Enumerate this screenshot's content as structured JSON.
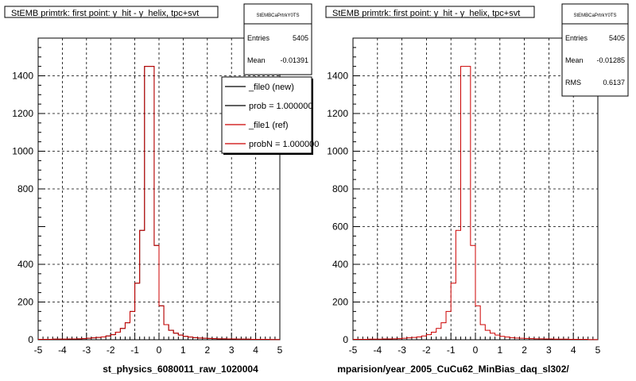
{
  "footer_text": "",
  "colors": {
    "new_series": "#000000",
    "ref_series": "#cc0000",
    "grid": "#000000",
    "frame": "#000000",
    "background": "#ffffff"
  },
  "chart_data": [
    {
      "type": "line",
      "title": "StEMB primtrk: first point: y_hit - y_helix, tpc+svt",
      "xlabel": "st_physics_6080011_raw_1020004",
      "ylabel": "",
      "xlim": [
        -5,
        5
      ],
      "ylim": [
        0,
        1600
      ],
      "grid": true,
      "xticks": [
        -5,
        -4,
        -3,
        -2,
        -1,
        0,
        1,
        2,
        3,
        4,
        5
      ],
      "yticks": [
        0,
        200,
        400,
        800,
        1000,
        1200,
        1400
      ],
      "bin_edges": [
        -5.0,
        -4.8,
        -4.6,
        -4.4,
        -4.2,
        -4.0,
        -3.8,
        -3.6,
        -3.4,
        -3.2,
        -3.0,
        -2.8,
        -2.6,
        -2.4,
        -2.2,
        -2.0,
        -1.8,
        -1.6,
        -1.4,
        -1.2,
        -1.0,
        -0.8,
        -0.6,
        -0.4,
        -0.2,
        0.0,
        0.2,
        0.4,
        0.6,
        0.8,
        1.0,
        1.2,
        1.4,
        1.6,
        1.8,
        2.0,
        2.2,
        2.4,
        2.6,
        2.8,
        3.0,
        3.2,
        3.4,
        3.6,
        3.8,
        4.0,
        4.2,
        4.4,
        4.6,
        4.8,
        5.0
      ],
      "series": [
        {
          "name": "_file0 (new)",
          "values": [
            2,
            2,
            2,
            3,
            3,
            3,
            4,
            4,
            5,
            6,
            8,
            10,
            12,
            15,
            20,
            27,
            40,
            60,
            90,
            150,
            300,
            580,
            1450,
            1450,
            500,
            180,
            80,
            50,
            35,
            25,
            18,
            14,
            11,
            9,
            8,
            7,
            6,
            5,
            5,
            4,
            4,
            3,
            3,
            3,
            2,
            2,
            2,
            2,
            1,
            1
          ]
        },
        {
          "name": "_file1 (ref)",
          "values": [
            2,
            2,
            2,
            3,
            3,
            3,
            4,
            4,
            5,
            6,
            8,
            10,
            12,
            15,
            20,
            27,
            40,
            60,
            90,
            150,
            300,
            580,
            1450,
            1450,
            500,
            180,
            80,
            50,
            35,
            25,
            18,
            14,
            11,
            9,
            8,
            7,
            6,
            5,
            5,
            4,
            4,
            3,
            3,
            3,
            2,
            2,
            2,
            2,
            1,
            1
          ]
        }
      ],
      "stats": {
        "box_title": "StEMBCaPrtrkY0TS",
        "rows": [
          {
            "label": "Entries",
            "value": "5405"
          },
          {
            "label": "Mean",
            "value": "-0.01391"
          }
        ]
      },
      "legend": {
        "placement": "top-right",
        "entries": [
          {
            "label": "_file0 (new)",
            "color": "#000000"
          },
          {
            "label": "prob = 1.000000",
            "color": "#000000"
          },
          {
            "label": "_file1 (ref)",
            "color": "#cc0000"
          },
          {
            "label": "probN = 1.000000",
            "color": "#cc0000"
          }
        ]
      }
    },
    {
      "type": "line",
      "title": "StEMB primtrk: first point: y_hit - y_helix, tpc+svt",
      "xlabel": "mparision/year_2005_CuCu62_MinBias_daq_sl302/",
      "ylabel": "",
      "xlim": [
        -5,
        5
      ],
      "ylim": [
        0,
        1600
      ],
      "grid": true,
      "xticks": [
        -5,
        -4,
        -3,
        -2,
        -1,
        0,
        1,
        2,
        3,
        4,
        5
      ],
      "yticks": [
        0,
        200,
        400,
        600,
        800,
        1000,
        1200,
        1400
      ],
      "bin_edges": [
        -5.0,
        -4.8,
        -4.6,
        -4.4,
        -4.2,
        -4.0,
        -3.8,
        -3.6,
        -3.4,
        -3.2,
        -3.0,
        -2.8,
        -2.6,
        -2.4,
        -2.2,
        -2.0,
        -1.8,
        -1.6,
        -1.4,
        -1.2,
        -1.0,
        -0.8,
        -0.6,
        -0.4,
        -0.2,
        0.0,
        0.2,
        0.4,
        0.6,
        0.8,
        1.0,
        1.2,
        1.4,
        1.6,
        1.8,
        2.0,
        2.2,
        2.4,
        2.6,
        2.8,
        3.0,
        3.2,
        3.4,
        3.6,
        3.8,
        4.0,
        4.2,
        4.4,
        4.6,
        4.8,
        5.0
      ],
      "series": [
        {
          "name": "",
          "values": [
            2,
            2,
            2,
            3,
            3,
            3,
            4,
            4,
            5,
            6,
            8,
            10,
            12,
            15,
            20,
            27,
            40,
            60,
            90,
            150,
            300,
            580,
            1450,
            1450,
            500,
            180,
            80,
            50,
            35,
            25,
            18,
            14,
            11,
            9,
            8,
            7,
            6,
            5,
            5,
            4,
            4,
            3,
            3,
            3,
            2,
            2,
            2,
            2,
            1,
            1
          ]
        }
      ],
      "stats": {
        "box_title": "StEMBCaPrtrkY0TS",
        "rows": [
          {
            "label": "Entries",
            "value": "5405"
          },
          {
            "label": "Mean",
            "value": "-0.01285"
          },
          {
            "label": "RMS",
            "value": "0.6137"
          }
        ]
      }
    }
  ]
}
